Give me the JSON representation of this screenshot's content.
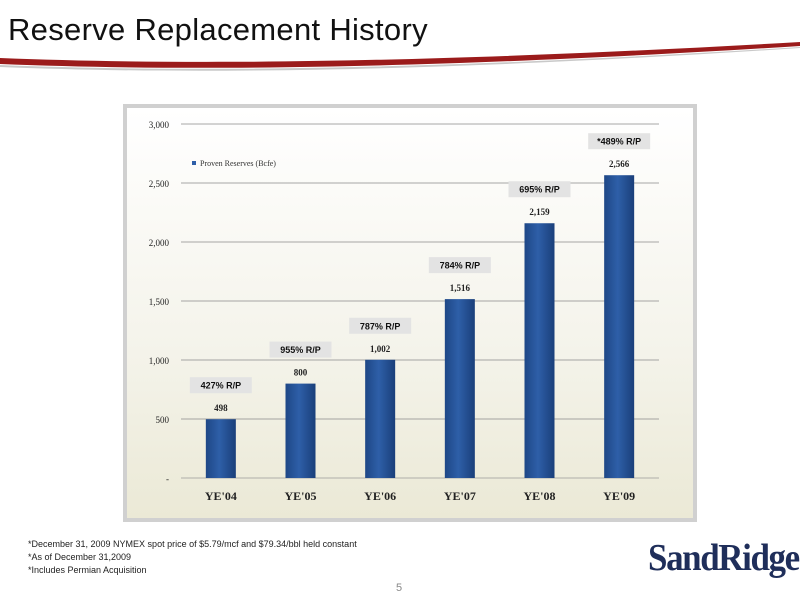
{
  "header": {
    "title": "Reserve Replacement History"
  },
  "colors": {
    "accent": "#9b1b1b",
    "bar": "#2e5fa8",
    "label_box": "#e3e3e3",
    "logo": "#1f2e5a"
  },
  "chart_data": {
    "type": "bar",
    "title": "",
    "xlabel": "",
    "ylabel": "",
    "categories": [
      "YE'04",
      "YE'05",
      "YE'06",
      "YE'07",
      "YE'08",
      "YE'09"
    ],
    "series": [
      {
        "name": "Proven Reserves (Bcfe)",
        "values": [
          498,
          800,
          1002,
          1516,
          2159,
          2566
        ]
      }
    ],
    "data_labels": [
      "498",
      "800",
      "1,002",
      "1,516",
      "2,159",
      "2,566"
    ],
    "rp_labels": [
      "427% R/P",
      "955% R/P",
      "787% R/P",
      "784% R/P",
      "695% R/P",
      "*489% R/P"
    ],
    "ylim": [
      0,
      3000
    ],
    "yticks": [
      0,
      500,
      1000,
      1500,
      2000,
      2500,
      3000
    ],
    "ytick_labels": [
      "-",
      "500",
      "1,000",
      "1,500",
      "2,000",
      "2,500",
      "3,000"
    ],
    "grid": true,
    "legend": "top-left"
  },
  "footnotes": [
    "*December 31, 2009 NYMEX spot price of $5.79/mcf and $79.34/bbl held constant",
    "*As of December 31,2009",
    "*Includes Permian Acquisition"
  ],
  "page_number": "5",
  "logo": {
    "text": "SandRidge"
  }
}
